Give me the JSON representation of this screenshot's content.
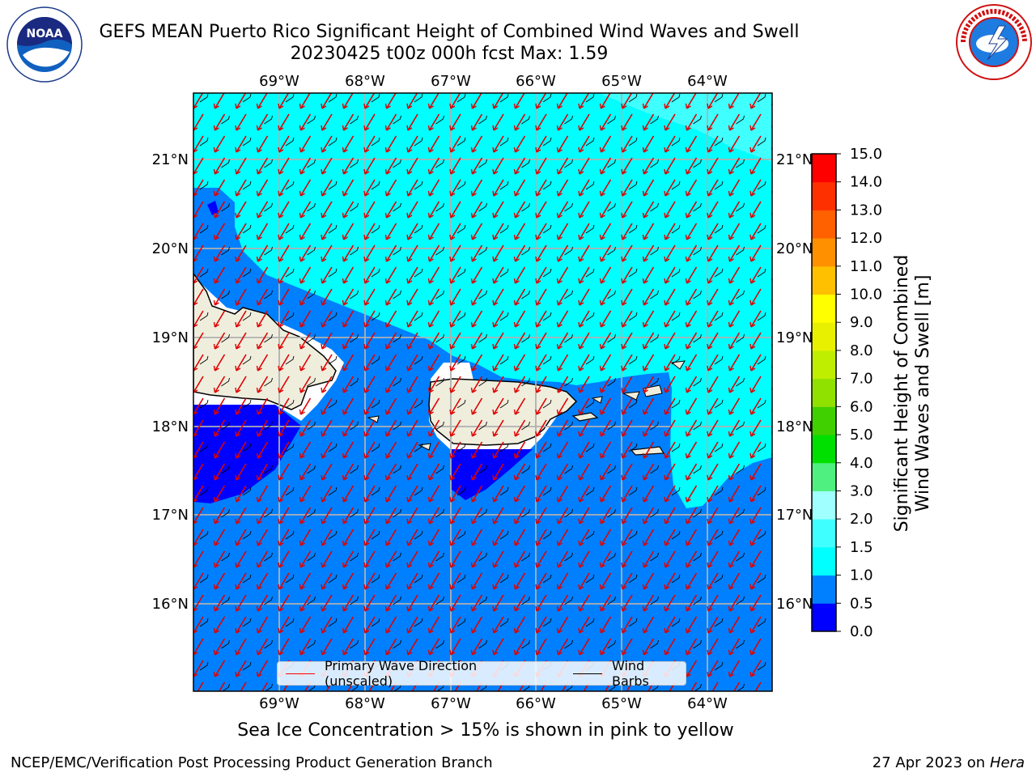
{
  "title_line1": "GEFS MEAN Puerto Rico Significant Height of Combined Wind Waves and Swell",
  "title_line2": "20230425 t00z 000h fcst   Max: 1.59",
  "lon_labels": [
    "69°W",
    "68°W",
    "67°W",
    "66°W",
    "65°W",
    "64°W"
  ],
  "lat_labels": [
    "21°N",
    "20°N",
    "19°N",
    "18°N",
    "17°N",
    "16°N"
  ],
  "legend": {
    "wave_label": "Primary Wave Direction (unscaled)",
    "barb_label": "Wind Barbs"
  },
  "colorbar": {
    "label": "Significant Height of Combined Wind Waves and Swell [m]",
    "ticks": [
      "0.0",
      "0.5",
      "1.0",
      "1.5",
      "2.0",
      "3.0",
      "4.0",
      "5.0",
      "6.0",
      "7.0",
      "8.0",
      "9.0",
      "10.0",
      "11.0",
      "12.0",
      "13.0",
      "14.0",
      "15.0"
    ],
    "colors": [
      "#0000ff",
      "#0080ff",
      "#00ffff",
      "#40ffff",
      "#a0ffff",
      "#50f080",
      "#00e000",
      "#40d000",
      "#90e000",
      "#c0ee00",
      "#e8f000",
      "#ffff00",
      "#ffc000",
      "#ff9000",
      "#ff6000",
      "#ff3000",
      "#ff0000"
    ]
  },
  "ice_note": "Sea Ice Concentration > 15% is shown in pink to yellow",
  "footer_left": "NCEP/EMC/Verification Post Processing Product Generation Branch",
  "footer_date": "27 Apr 2023 on ",
  "footer_machine": "Hera",
  "logos": {
    "left": "NOAA",
    "right": "NATIONAL WEATHER SERVICE"
  }
}
